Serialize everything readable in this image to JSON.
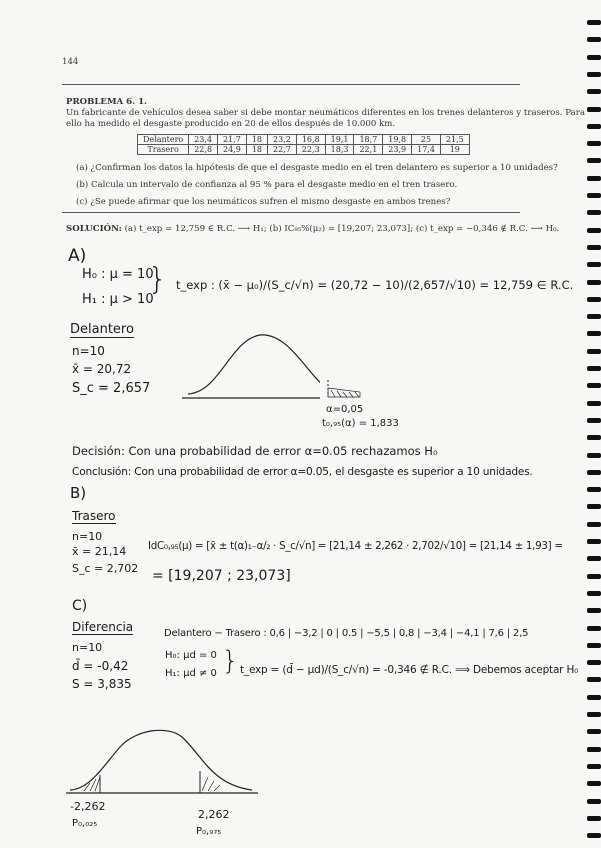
{
  "page_number": "144",
  "problem": {
    "title": "PROBLEMA 6. 1.",
    "statement_line1": "Un fabricante de vehículos desea saber si debe montar neumáticos diferentes en los trenes delanteros y traseros. Para",
    "statement_line2": "ello ha medido el desgaste producido en 20 de ellos después de 10.000 km.",
    "table": {
      "rows": [
        {
          "label": "Delantero",
          "values": [
            "23,4",
            "21,7",
            "18",
            "23,2",
            "16,8",
            "19,1",
            "18,7",
            "19,8",
            "25",
            "21,5"
          ]
        },
        {
          "label": "Trasero",
          "values": [
            "22,8",
            "24,9",
            "18",
            "22,7",
            "22,3",
            "18,3",
            "22,1",
            "23,9",
            "17,4",
            "19"
          ]
        }
      ]
    },
    "questions": [
      "(a) ¿Confirman los datos la hipótesis de que el desgaste medio en el tren delantero es superior a 10 unidades?",
      "(b) Calcula un intervalo de confianza al 95 % para el desgaste medio en el tren trasero.",
      "(c) ¿Se puede afirmar que los neumáticos sufren el mismo desgaste en ambos trenes?"
    ],
    "solution_label": "SOLUCIÓN:",
    "solution_text": "(a) t_exp = 12,759 ∈ R.C. ⟶ H₁; (b) IC₉₅%(μ₂) = [19,207; 23,073]; (c) t_exp = −0,346 ∉ R.C. ⟶ H₀."
  },
  "handwritten": {
    "a": {
      "heading": "A)",
      "h0": "H₀ : μ = 10",
      "h1": "H₁ : μ > 10",
      "formula": "t_exp : (x̄ − μ₀)/(S_c/√n) = (20,72 − 10)/(2,657/√10) = 12,759 ∈ R.C.",
      "sample_title": "Delantero",
      "n": "n=10",
      "mean": "x̄ = 20,72",
      "sc": "S_c = 2,657",
      "alpha": "α=0,05",
      "critical": "t₀,₉₅(α) = 1,833",
      "decision": "Decisión: Con una probabilidad de error α=0.05 rechazamos H₀",
      "conclusion": "Conclusión: Con una probabilidad de error α=0.05, el desgaste es superior a 10 unidades."
    },
    "b": {
      "heading": "B)",
      "sample_title": "Trasero",
      "n": "n=10",
      "mean": "x̄ = 21,14",
      "sc": "S_c = 2,702",
      "formula": "IdC₀,₉₅(μ) = [x̄ ± t(α)₁₋α/₂ · S_c/√n] = [21,14 ± 2,262 · 2,702/√10] = [21,14 ± 1,93] =",
      "result": "= [19,207 ; 23,073]"
    },
    "c": {
      "heading": "C)",
      "sample_title": "Diferencia",
      "differences": "Delantero − Trasero : 0,6 | −3,2 | 0 | 0.5 | −5,5 | 0,8 | −3,4 | −4,1 | 7,6 | 2,5",
      "n": "n=10",
      "mean": "d̄ = -0,42",
      "sd": "S = 3,835",
      "h0": "H₀: μd = 0",
      "h1": "H₁: μd ≠ 0",
      "formula": "t_exp = (d̄ − μd)/(S_c/√n) = -0,346 ∉ R.C. ⟹ Debemos aceptar H₀",
      "left_critical": "-2,262",
      "left_label": "P₀,₀₂₅",
      "right_critical": "2,262",
      "right_label": "P₀,₉₇₅"
    }
  }
}
